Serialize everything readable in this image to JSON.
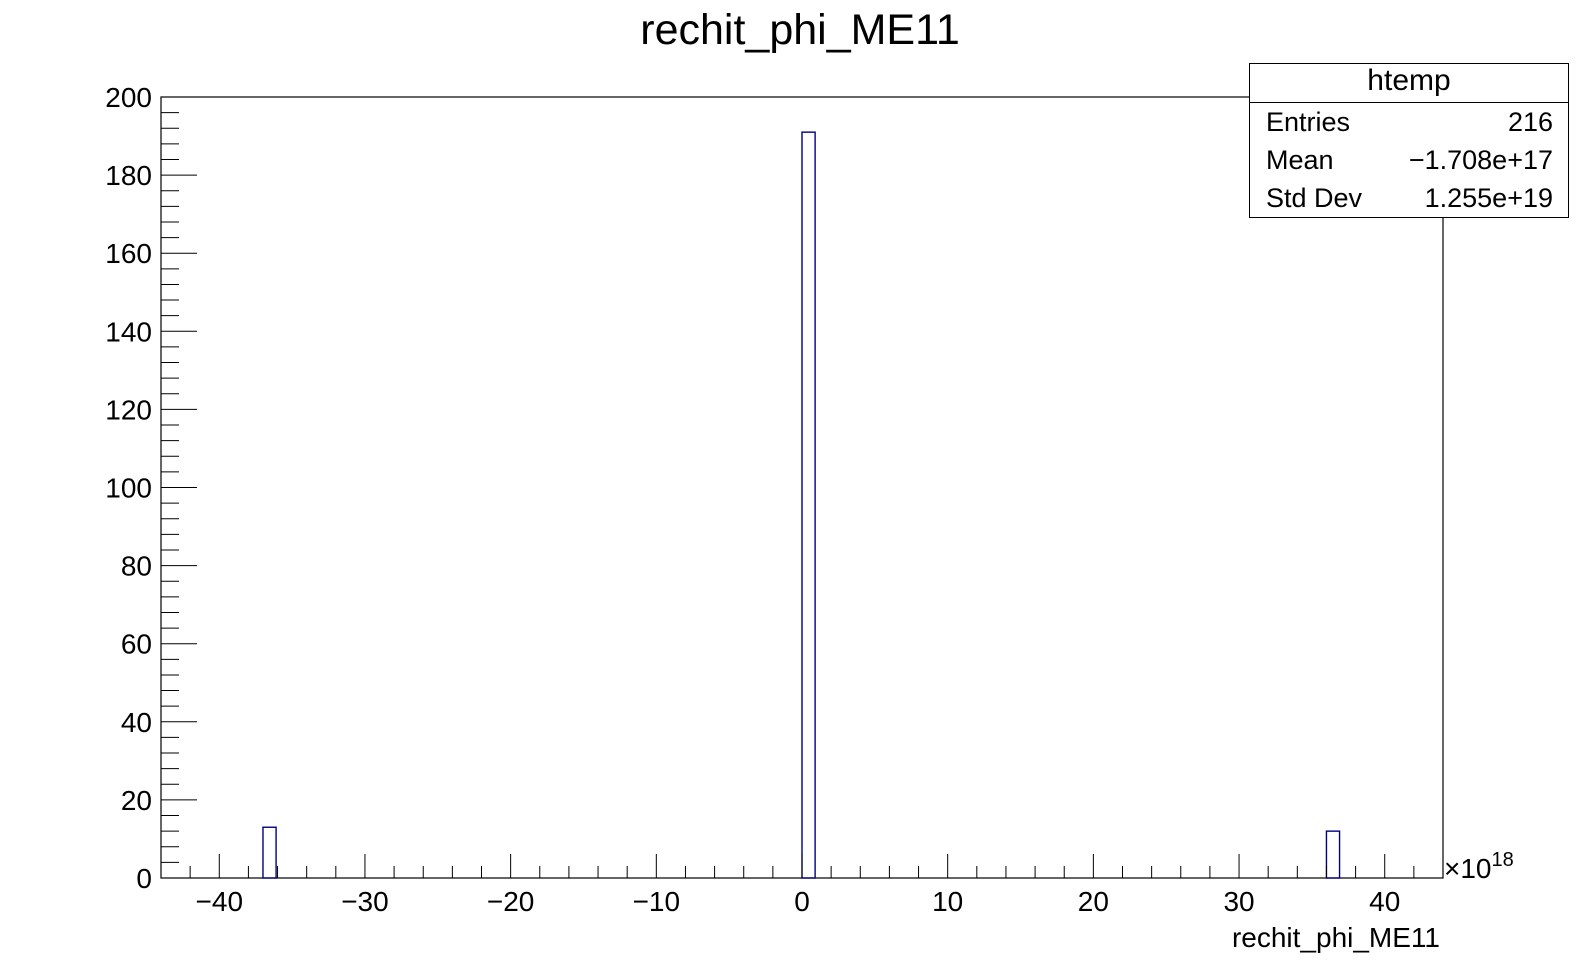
{
  "chart_data": {
    "type": "bar",
    "title": "rechit_phi_ME11",
    "xlabel": "rechit_phi_ME11",
    "ylabel": "",
    "x_multiplier": "×10",
    "x_exponent": "18",
    "xlim": [
      -44,
      44
    ],
    "ylim": [
      0,
      200
    ],
    "x_ticks": [
      -40,
      -30,
      -20,
      -10,
      0,
      10,
      20,
      30,
      40
    ],
    "x_tick_labels": [
      "−40",
      "−30",
      "−20",
      "−10",
      "0",
      "10",
      "20",
      "30",
      "40"
    ],
    "y_ticks": [
      0,
      20,
      40,
      60,
      80,
      100,
      120,
      140,
      160,
      180,
      200
    ],
    "y_tick_labels": [
      "0",
      "20",
      "40",
      "60",
      "80",
      "100",
      "120",
      "140",
      "160",
      "180",
      "200"
    ],
    "bars": [
      {
        "x_low": -37.0,
        "x_high": -36.1,
        "value": 13
      },
      {
        "x_low": 0.0,
        "x_high": 0.9,
        "value": 191
      },
      {
        "x_low": 36.0,
        "x_high": 36.9,
        "value": 12
      }
    ],
    "grid": false,
    "legend_placement": "top-right",
    "colors": {
      "bar_line": "#000080",
      "axis": "#000000",
      "background": "#ffffff"
    }
  },
  "stats": {
    "title": "htemp",
    "rows": [
      {
        "label": "Entries",
        "value": "216"
      },
      {
        "label": "Mean",
        "value": "−1.708e+17"
      },
      {
        "label": "Std Dev",
        "value": "1.255e+19"
      }
    ]
  }
}
